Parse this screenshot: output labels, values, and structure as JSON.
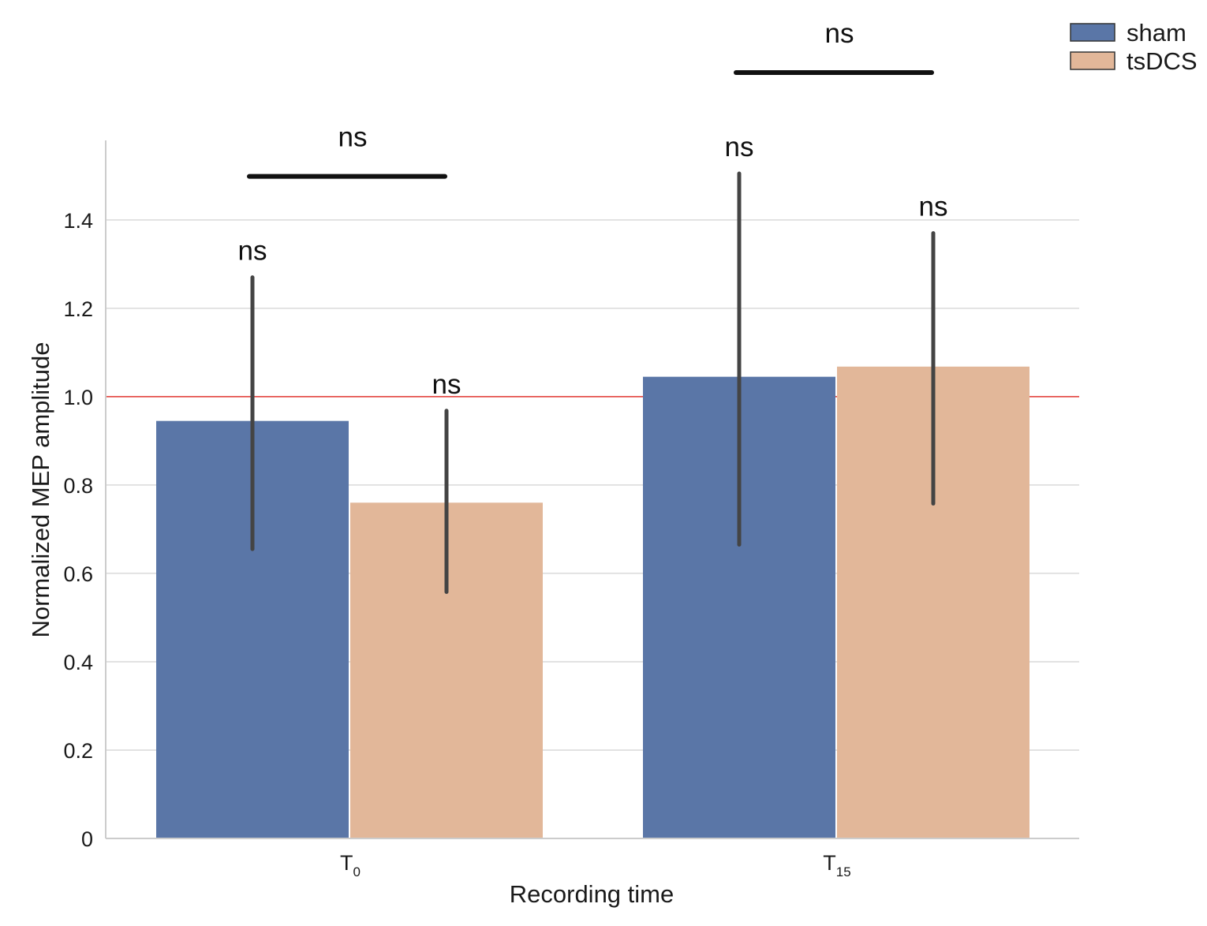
{
  "chart_data": {
    "type": "bar",
    "xlabel": "Recording time",
    "ylabel": "Normalized MEP amplitude",
    "ylim": [
      0,
      1.58
    ],
    "yticks": [
      0,
      0.2,
      0.4,
      0.6,
      0.8,
      1.0,
      1.2,
      1.4
    ],
    "ytick_labels": [
      "0",
      "0.2",
      "0.4",
      "0.6",
      "0.8",
      "1.0",
      "1.2",
      "1.4"
    ],
    "grid": "horizontal",
    "legend_position": "top-right",
    "reference_line": {
      "y": 1.0,
      "color": "#e53935"
    },
    "categories": [
      {
        "main": "T",
        "sub": "0"
      },
      {
        "main": "T",
        "sub": "15"
      }
    ],
    "series": [
      {
        "name": "sham",
        "color": "#5a76a7",
        "values": [
          0.945,
          1.045
        ],
        "err_low": [
          0.655,
          0.665
        ],
        "err_high": [
          1.27,
          1.505
        ]
      },
      {
        "name": "tsDCS",
        "color": "#e2b799",
        "values": [
          0.76,
          1.068
        ],
        "err_low": [
          0.558,
          0.758
        ],
        "err_high": [
          0.968,
          1.37
        ]
      }
    ],
    "bar_annotations": [
      {
        "category": 0,
        "series": 0,
        "text": "ns"
      },
      {
        "category": 0,
        "series": 1,
        "text": "ns"
      },
      {
        "category": 1,
        "series": 0,
        "text": "ns"
      },
      {
        "category": 1,
        "series": 1,
        "text": "ns"
      }
    ],
    "group_annotations": [
      {
        "category": 0,
        "text": "ns"
      },
      {
        "category": 1,
        "text": "ns"
      }
    ]
  }
}
